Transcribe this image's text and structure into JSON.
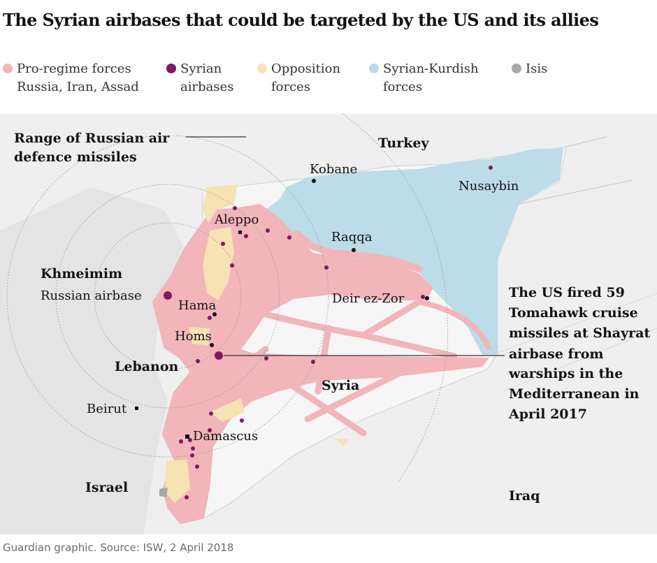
{
  "title": "The Syrian airbases that could be targeted by the US and its allies",
  "legend": [
    {
      "line1": "Pro-regime forces",
      "line2": "Russia, Iran, Assad",
      "color": "#f2b5b9"
    },
    {
      "line1": "Syrian",
      "line2": "airbases",
      "color": "#7d1a67"
    },
    {
      "line1": "Opposition",
      "line2": "forces",
      "color": "#f6e2b3"
    },
    {
      "line1": "Syrian-Kurdish",
      "line2": "forces",
      "color": "#bcdcea"
    },
    {
      "line1": "Isis",
      "line2": "",
      "color": "#a8a8a8"
    }
  ],
  "map": {
    "range_label": [
      "Range of Russian air",
      "defence missiles"
    ],
    "khmeimim": [
      "Khmeimim",
      "Russian airbase"
    ],
    "countries": {
      "turkey": "Turkey",
      "syria": "Syria",
      "lebanon": "Lebanon",
      "israel": "Israel",
      "iraq": "Iraq"
    },
    "cities": {
      "aleppo": "Aleppo",
      "kobane": "Kobane",
      "raqqa": "Raqqa",
      "nusaybin": "Nusaybin",
      "deir_ez_zor": "Deir ez-Zor",
      "hama": "Hama",
      "homs": "Homs",
      "beirut": "Beirut",
      "damascus": "Damascus"
    },
    "annotation": [
      "The US fired 59",
      "Tomahawk cruise",
      "missiles at Shayrat",
      "airbase from",
      "warships in the",
      "Mediterranean in",
      "April 2017"
    ]
  },
  "source": "Guardian graphic. Source: ISW, 2 April 2018"
}
